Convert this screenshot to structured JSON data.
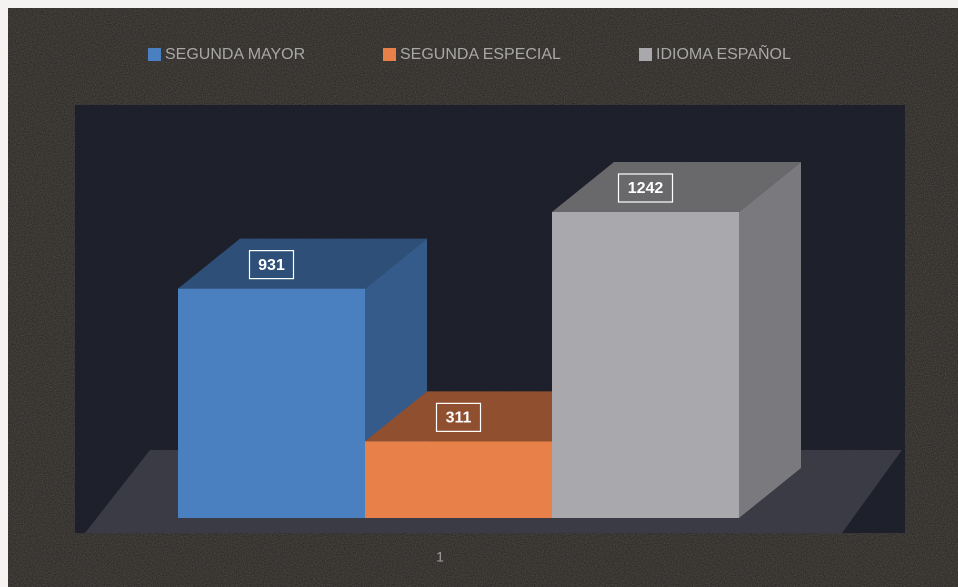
{
  "chart_data": {
    "type": "bar3d",
    "categories": [
      "1"
    ],
    "series": [
      {
        "name": "SEGUNDA MAYOR",
        "color": "#4a7fc0",
        "values": [
          931
        ]
      },
      {
        "name": "SEGUNDA ESPECIAL",
        "color": "#e8804a",
        "values": [
          311
        ]
      },
      {
        "name": "IDIOMA  ESPAÑOL",
        "color": "#a9a8ad",
        "values": [
          1242
        ]
      }
    ]
  }
}
